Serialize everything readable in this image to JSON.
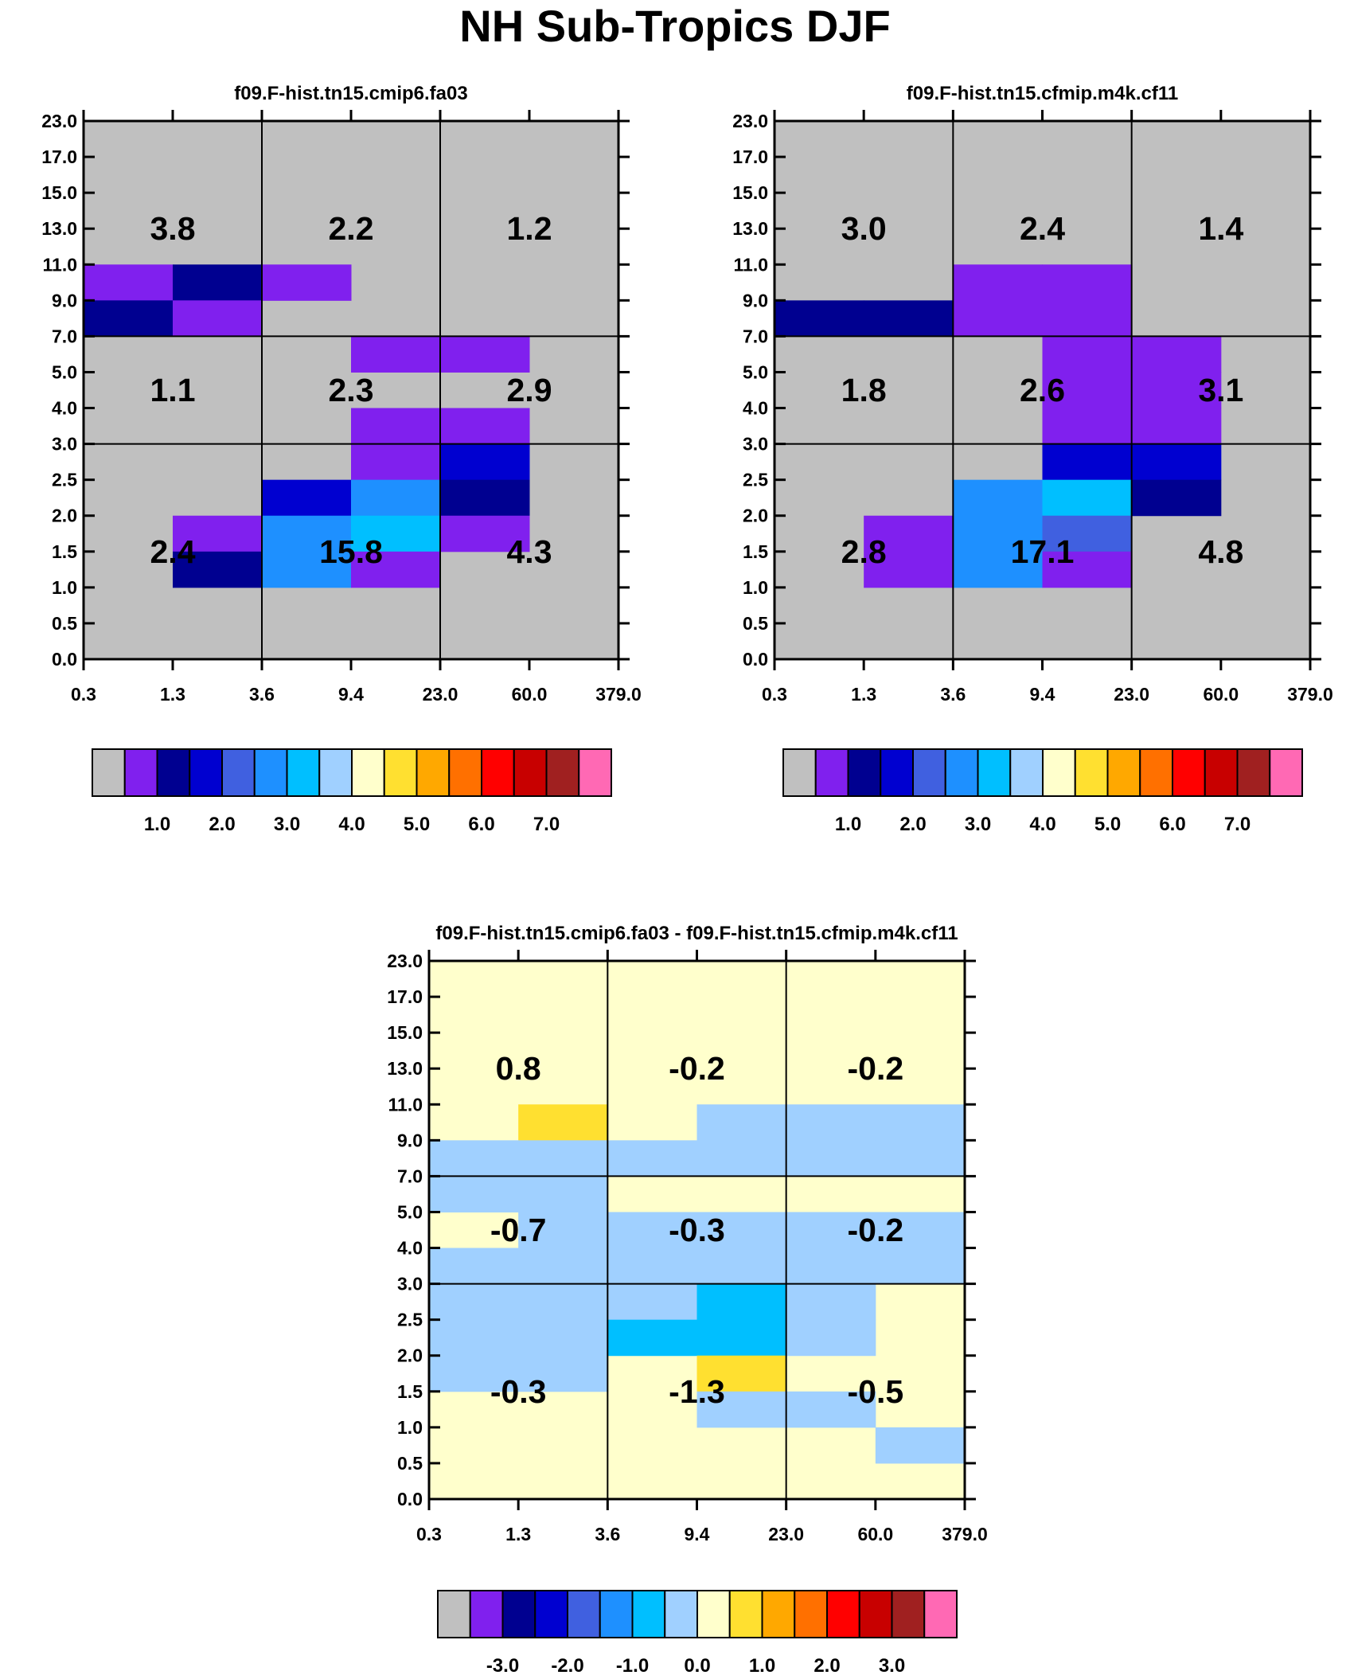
{
  "title": "NH Sub-Tropics DJF",
  "palette": {
    "gray": "#c0c0c0",
    "violet": "#8020ee",
    "darkblue": "#000090",
    "blue": "#0000d0",
    "royal": "#4060e0",
    "dodger": "#1e90ff",
    "cyan": "#00bfff",
    "lightblue": "#a0d0ff",
    "cream": "#ffffcc",
    "yellow": "#ffe030",
    "orange": "#ffa800",
    "darkorange": "#ff7000",
    "red": "#ff0000",
    "crimson": "#c80000",
    "brown": "#a02020",
    "pink": "#ff69b4"
  },
  "chart_data": [
    {
      "type": "heatmap",
      "title": "f09.F-hist.tn15.cmip6.fa03",
      "xticks": [
        "0.3",
        "1.3",
        "3.6",
        "9.4",
        "23.0",
        "60.0",
        "379.0"
      ],
      "yticks": [
        "0.0",
        "0.5",
        "1.0",
        "1.5",
        "2.0",
        "2.5",
        "3.0",
        "4.0",
        "5.0",
        "7.0",
        "9.0",
        "11.0",
        "13.0",
        "15.0",
        "17.0",
        "23.0"
      ],
      "background": "gray",
      "cells": [
        {
          "x": 0,
          "y": 10,
          "c": "violet"
        },
        {
          "x": 1,
          "y": 10,
          "c": "darkblue"
        },
        {
          "x": 2,
          "y": 10,
          "c": "violet"
        },
        {
          "x": 0,
          "y": 9,
          "c": "darkblue"
        },
        {
          "x": 1,
          "y": 9,
          "c": "violet"
        },
        {
          "x": 3,
          "y": 8,
          "c": "violet"
        },
        {
          "x": 4,
          "y": 8,
          "c": "violet"
        },
        {
          "x": 3,
          "y": 6,
          "c": "violet"
        },
        {
          "x": 4,
          "y": 6,
          "c": "violet"
        },
        {
          "x": 3,
          "y": 5,
          "c": "violet"
        },
        {
          "x": 4,
          "y": 5,
          "c": "blue"
        },
        {
          "x": 2,
          "y": 4,
          "c": "blue"
        },
        {
          "x": 3,
          "y": 4,
          "c": "dodger"
        },
        {
          "x": 4,
          "y": 4,
          "c": "darkblue"
        },
        {
          "x": 1,
          "y": 3,
          "c": "violet"
        },
        {
          "x": 2,
          "y": 3,
          "c": "dodger"
        },
        {
          "x": 3,
          "y": 3,
          "c": "cyan"
        },
        {
          "x": 4,
          "y": 3,
          "c": "violet"
        },
        {
          "x": 1,
          "y": 2,
          "c": "darkblue"
        },
        {
          "x": 2,
          "y": 2,
          "c": "dodger"
        },
        {
          "x": 3,
          "y": 2,
          "c": "violet"
        }
      ],
      "annotations": [
        {
          "col": 0,
          "row": 2,
          "label": "3.8"
        },
        {
          "col": 1,
          "row": 2,
          "label": "2.2"
        },
        {
          "col": 2,
          "row": 2,
          "label": "1.2"
        },
        {
          "col": 0,
          "row": 1,
          "label": "1.1"
        },
        {
          "col": 1,
          "row": 1,
          "label": "2.3"
        },
        {
          "col": 2,
          "row": 1,
          "label": "2.9"
        },
        {
          "col": 0,
          "row": 0,
          "label": "2.4"
        },
        {
          "col": 1,
          "row": 0,
          "label": "15.8"
        },
        {
          "col": 2,
          "row": 0,
          "label": "4.3"
        }
      ]
    },
    {
      "type": "heatmap",
      "title": "f09.F-hist.tn15.cfmip.m4k.cf11",
      "xticks": [
        "0.3",
        "1.3",
        "3.6",
        "9.4",
        "23.0",
        "60.0",
        "379.0"
      ],
      "yticks": [
        "0.0",
        "0.5",
        "1.0",
        "1.5",
        "2.0",
        "2.5",
        "3.0",
        "4.0",
        "5.0",
        "7.0",
        "9.0",
        "11.0",
        "13.0",
        "15.0",
        "17.0",
        "23.0"
      ],
      "background": "gray",
      "cells": [
        {
          "x": 2,
          "y": 10,
          "c": "violet"
        },
        {
          "x": 3,
          "y": 10,
          "c": "violet"
        },
        {
          "x": 0,
          "y": 9,
          "c": "darkblue"
        },
        {
          "x": 1,
          "y": 9,
          "c": "darkblue"
        },
        {
          "x": 2,
          "y": 9,
          "c": "violet"
        },
        {
          "x": 3,
          "y": 9,
          "c": "violet"
        },
        {
          "x": 3,
          "y": 8,
          "c": "violet"
        },
        {
          "x": 4,
          "y": 8,
          "c": "violet"
        },
        {
          "x": 3,
          "y": 7,
          "c": "violet"
        },
        {
          "x": 4,
          "y": 7,
          "c": "violet"
        },
        {
          "x": 3,
          "y": 6,
          "c": "violet"
        },
        {
          "x": 4,
          "y": 6,
          "c": "violet"
        },
        {
          "x": 3,
          "y": 5,
          "c": "blue"
        },
        {
          "x": 4,
          "y": 5,
          "c": "blue"
        },
        {
          "x": 2,
          "y": 4,
          "c": "dodger"
        },
        {
          "x": 3,
          "y": 4,
          "c": "cyan"
        },
        {
          "x": 4,
          "y": 4,
          "c": "darkblue"
        },
        {
          "x": 1,
          "y": 3,
          "c": "violet"
        },
        {
          "x": 2,
          "y": 3,
          "c": "dodger"
        },
        {
          "x": 3,
          "y": 3,
          "c": "royal"
        },
        {
          "x": 1,
          "y": 2,
          "c": "violet"
        },
        {
          "x": 2,
          "y": 2,
          "c": "dodger"
        },
        {
          "x": 3,
          "y": 2,
          "c": "violet"
        }
      ],
      "annotations": [
        {
          "col": 0,
          "row": 2,
          "label": "3.0"
        },
        {
          "col": 1,
          "row": 2,
          "label": "2.4"
        },
        {
          "col": 2,
          "row": 2,
          "label": "1.4"
        },
        {
          "col": 0,
          "row": 1,
          "label": "1.8"
        },
        {
          "col": 1,
          "row": 1,
          "label": "2.6"
        },
        {
          "col": 2,
          "row": 1,
          "label": "3.1"
        },
        {
          "col": 0,
          "row": 0,
          "label": "2.8"
        },
        {
          "col": 1,
          "row": 0,
          "label": "17.1"
        },
        {
          "col": 2,
          "row": 0,
          "label": "4.8"
        }
      ]
    },
    {
      "type": "heatmap",
      "title": "f09.F-hist.tn15.cmip6.fa03 - f09.F-hist.tn15.cfmip.m4k.cf11",
      "xticks": [
        "0.3",
        "1.3",
        "3.6",
        "9.4",
        "23.0",
        "60.0",
        "379.0"
      ],
      "yticks": [
        "0.0",
        "0.5",
        "1.0",
        "1.5",
        "2.0",
        "2.5",
        "3.0",
        "4.0",
        "5.0",
        "7.0",
        "9.0",
        "11.0",
        "13.0",
        "15.0",
        "17.0",
        "23.0"
      ],
      "background": "cream",
      "cells": [
        {
          "x": 1,
          "y": 10,
          "c": "yellow"
        },
        {
          "x": 3,
          "y": 10,
          "c": "lightblue"
        },
        {
          "x": 4,
          "y": 10,
          "c": "lightblue"
        },
        {
          "x": 5,
          "y": 10,
          "c": "lightblue"
        },
        {
          "x": 0,
          "y": 9,
          "c": "lightblue"
        },
        {
          "x": 1,
          "y": 9,
          "c": "lightblue"
        },
        {
          "x": 2,
          "y": 9,
          "c": "lightblue"
        },
        {
          "x": 3,
          "y": 9,
          "c": "lightblue"
        },
        {
          "x": 4,
          "y": 9,
          "c": "lightblue"
        },
        {
          "x": 5,
          "y": 9,
          "c": "lightblue"
        },
        {
          "x": 0,
          "y": 8,
          "c": "lightblue"
        },
        {
          "x": 1,
          "y": 8,
          "c": "lightblue"
        },
        {
          "x": 1,
          "y": 7,
          "c": "lightblue"
        },
        {
          "x": 2,
          "y": 7,
          "c": "lightblue"
        },
        {
          "x": 3,
          "y": 7,
          "c": "lightblue"
        },
        {
          "x": 4,
          "y": 7,
          "c": "lightblue"
        },
        {
          "x": 5,
          "y": 7,
          "c": "lightblue"
        },
        {
          "x": 0,
          "y": 6,
          "c": "lightblue"
        },
        {
          "x": 1,
          "y": 6,
          "c": "lightblue"
        },
        {
          "x": 2,
          "y": 6,
          "c": "lightblue"
        },
        {
          "x": 3,
          "y": 6,
          "c": "lightblue"
        },
        {
          "x": 4,
          "y": 6,
          "c": "lightblue"
        },
        {
          "x": 5,
          "y": 6,
          "c": "lightblue"
        },
        {
          "x": 0,
          "y": 5,
          "c": "lightblue"
        },
        {
          "x": 1,
          "y": 5,
          "c": "lightblue"
        },
        {
          "x": 2,
          "y": 5,
          "c": "lightblue"
        },
        {
          "x": 3,
          "y": 5,
          "c": "cyan"
        },
        {
          "x": 4,
          "y": 5,
          "c": "lightblue"
        },
        {
          "x": 0,
          "y": 4,
          "c": "lightblue"
        },
        {
          "x": 1,
          "y": 4,
          "c": "lightblue"
        },
        {
          "x": 2,
          "y": 4,
          "c": "cyan"
        },
        {
          "x": 3,
          "y": 4,
          "c": "cyan"
        },
        {
          "x": 4,
          "y": 4,
          "c": "lightblue"
        },
        {
          "x": 0,
          "y": 3,
          "c": "lightblue"
        },
        {
          "x": 1,
          "y": 3,
          "c": "lightblue"
        },
        {
          "x": 3,
          "y": 3,
          "c": "yellow"
        },
        {
          "x": 3,
          "y": 2,
          "c": "lightblue"
        },
        {
          "x": 4,
          "y": 2,
          "c": "lightblue"
        },
        {
          "x": 5,
          "y": 1,
          "c": "lightblue"
        }
      ],
      "annotations": [
        {
          "col": 0,
          "row": 2,
          "label": "0.8"
        },
        {
          "col": 1,
          "row": 2,
          "label": "-0.2"
        },
        {
          "col": 2,
          "row": 2,
          "label": "-0.2"
        },
        {
          "col": 0,
          "row": 1,
          "label": "-0.7"
        },
        {
          "col": 1,
          "row": 1,
          "label": "-0.3"
        },
        {
          "col": 2,
          "row": 1,
          "label": "-0.2"
        },
        {
          "col": 0,
          "row": 0,
          "label": "-0.3"
        },
        {
          "col": 1,
          "row": 0,
          "label": "-1.3"
        },
        {
          "col": 2,
          "row": 0,
          "label": "-0.5"
        }
      ]
    }
  ],
  "colorbars": [
    {
      "colors": [
        "gray",
        "violet",
        "darkblue",
        "blue",
        "royal",
        "dodger",
        "cyan",
        "lightblue",
        "cream",
        "yellow",
        "orange",
        "darkorange",
        "red",
        "crimson",
        "brown",
        "pink"
      ],
      "labels": [
        "1.0",
        "2.0",
        "3.0",
        "4.0",
        "5.0",
        "6.0",
        "7.0"
      ],
      "first_boundary": 2
    },
    {
      "colors": [
        "gray",
        "violet",
        "darkblue",
        "blue",
        "royal",
        "dodger",
        "cyan",
        "lightblue",
        "cream",
        "yellow",
        "orange",
        "darkorange",
        "red",
        "crimson",
        "brown",
        "pink"
      ],
      "labels": [
        "1.0",
        "2.0",
        "3.0",
        "4.0",
        "5.0",
        "6.0",
        "7.0"
      ],
      "first_boundary": 2
    },
    {
      "colors": [
        "gray",
        "violet",
        "darkblue",
        "blue",
        "royal",
        "dodger",
        "cyan",
        "lightblue",
        "cream",
        "yellow",
        "orange",
        "darkorange",
        "red",
        "crimson",
        "brown",
        "pink"
      ],
      "labels": [
        "-3.0",
        "-2.0",
        "-1.0",
        "0.0",
        "1.0",
        "2.0",
        "3.0"
      ],
      "first_boundary": 2
    }
  ]
}
